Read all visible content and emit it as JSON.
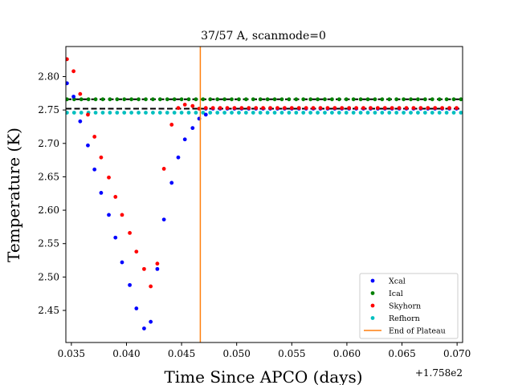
{
  "chart_data": {
    "type": "scatter",
    "title": "37/57 A, scanmode=0",
    "xlabel": "Time Since APCO (days)",
    "ylabel": "Temperature (K)",
    "x_offset_label": "+1.758e2",
    "xlim": [
      0.0345,
      0.0705
    ],
    "ylim": [
      2.402,
      2.845
    ],
    "x_ticks": [
      0.035,
      0.04,
      0.045,
      0.05,
      0.055,
      0.06,
      0.065,
      0.07
    ],
    "x_tick_labels": [
      "0.035",
      "0.040",
      "0.045",
      "0.050",
      "0.055",
      "0.060",
      "0.065",
      "0.070"
    ],
    "y_ticks": [
      2.45,
      2.5,
      2.55,
      2.6,
      2.65,
      2.7,
      2.75,
      2.8
    ],
    "y_tick_labels": [
      "2.45",
      "2.50",
      "2.55",
      "2.60",
      "2.65",
      "2.70",
      "2.75",
      "2.80"
    ],
    "grid": false,
    "legend_position": "lower-right",
    "dip_series": [
      {
        "name": "Xcal",
        "color": "#0000ff",
        "x": [
          0.0346,
          0.0352,
          0.0358,
          0.0365,
          0.0371,
          0.0377,
          0.0384,
          0.039,
          0.0396,
          0.0403,
          0.0409,
          0.0416,
          0.0422,
          0.0428,
          0.0434,
          0.0441,
          0.0447,
          0.0453,
          0.046,
          0.0466,
          0.0472
        ],
        "y": [
          2.79,
          2.77,
          2.733,
          2.697,
          2.661,
          2.626,
          2.593,
          2.559,
          2.522,
          2.488,
          2.453,
          2.423,
          2.433,
          2.512,
          2.586,
          2.641,
          2.679,
          2.706,
          2.723,
          2.737,
          2.743
        ]
      },
      {
        "name": "Skyhorn",
        "color": "#ff0000",
        "x": [
          0.0346,
          0.0352,
          0.0358,
          0.0365,
          0.0371,
          0.0377,
          0.0384,
          0.039,
          0.0396,
          0.0403,
          0.0409,
          0.0416,
          0.0422,
          0.0428,
          0.0434,
          0.0441,
          0.0447,
          0.0453,
          0.046,
          0.0466
        ],
        "y": [
          2.826,
          2.808,
          2.774,
          2.743,
          2.71,
          2.679,
          2.649,
          2.62,
          2.593,
          2.566,
          2.538,
          2.512,
          2.486,
          2.52,
          2.662,
          2.728,
          2.753,
          2.758,
          2.756,
          2.752
        ]
      }
    ],
    "plateau_series": [
      {
        "name": "Xcal",
        "color": "#0000ff",
        "x_start": 0.0472,
        "x_end": 0.0705,
        "x_step": 0.00065,
        "y": 2.752
      },
      {
        "name": "Ical",
        "color": "#008000",
        "x_start": 0.0346,
        "x_end": 0.0705,
        "x_step": 0.00065,
        "y": 2.766
      },
      {
        "name": "Skyhorn",
        "color": "#ff0000",
        "x_start": 0.0472,
        "x_end": 0.0705,
        "x_step": 0.00065,
        "y": 2.753
      },
      {
        "name": "Refhorn",
        "color": "#00bfbf",
        "x_start": 0.0346,
        "x_end": 0.0705,
        "x_step": 0.00065,
        "y": 2.746
      }
    ],
    "reference_lines": [
      {
        "y": 2.752,
        "color": "#000000"
      },
      {
        "y": 2.766,
        "color": "#000000"
      }
    ],
    "end_of_plateau": {
      "x": 0.0467,
      "color": "#ff7f0e",
      "name": "End of Plateau"
    },
    "legend": [
      {
        "label": "Xcal",
        "color": "#0000ff",
        "marker": "dot"
      },
      {
        "label": "Ical",
        "color": "#008000",
        "marker": "dot"
      },
      {
        "label": "Skyhorn",
        "color": "#ff0000",
        "marker": "dot"
      },
      {
        "label": "Refhorn",
        "color": "#00bfbf",
        "marker": "dot"
      },
      {
        "label": "End of Plateau",
        "color": "#ff7f0e",
        "marker": "line"
      }
    ]
  }
}
